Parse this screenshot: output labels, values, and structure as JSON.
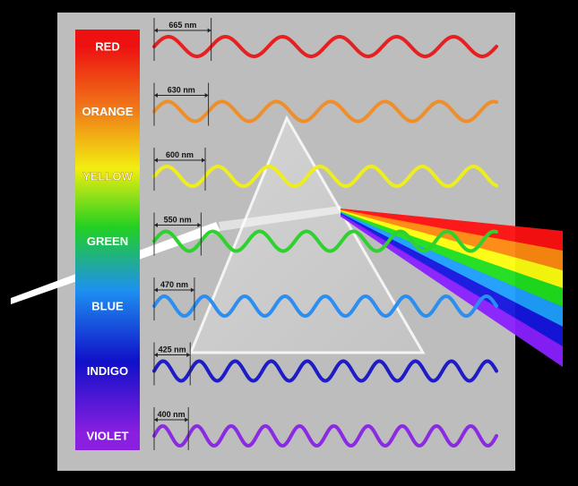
{
  "colors": {
    "background": "#000000",
    "panel": "#bdbdbd",
    "light_beam": "#ffffff"
  },
  "spectrum": [
    {
      "label": "RED",
      "wavelength": "665 nm",
      "color": "#e62020",
      "cycles": 6
    },
    {
      "label": "ORANGE",
      "wavelength": "630 nm",
      "color": "#ef8f2c",
      "cycles": 6.3
    },
    {
      "label": "YELLOW",
      "wavelength": "600 nm",
      "color": "#eeee1e",
      "cycles": 6.7
    },
    {
      "label": "GREEN",
      "wavelength": "550 nm",
      "color": "#2fd12f",
      "cycles": 7.3
    },
    {
      "label": "BLUE",
      "wavelength": "470 nm",
      "color": "#2b8ef0",
      "cycles": 8.5
    },
    {
      "label": "INDIGO",
      "wavelength": "425 nm",
      "color": "#1d1cc6",
      "cycles": 9.5
    },
    {
      "label": "VIOLET",
      "wavelength": "400 nm",
      "color": "#8a2be2",
      "cycles": 10
    }
  ]
}
